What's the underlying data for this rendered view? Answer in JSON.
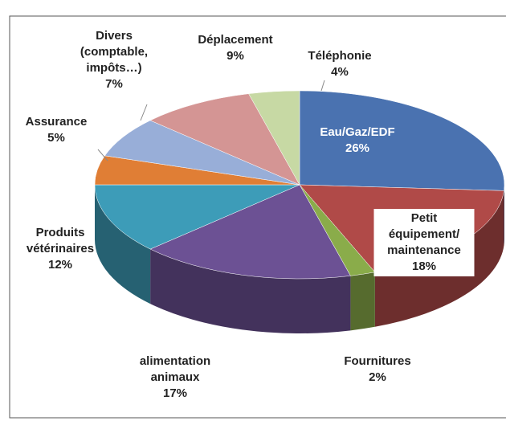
{
  "chart_data": {
    "type": "pie3d",
    "categories": [
      "Eau/Gaz/EDF",
      "Petit équipement/ maintenance",
      "Fournitures",
      "alimentation animaux",
      "Produits vétérinaires",
      "Assurance",
      "Divers (comptable, impôts…)",
      "Déplacement",
      "Téléphonie"
    ],
    "values": [
      26,
      18,
      2,
      17,
      12,
      5,
      7,
      9,
      4
    ],
    "value_labels": [
      "26%",
      "18%",
      "2%",
      "17%",
      "12%",
      "5%",
      "7%",
      "9%",
      "4%"
    ],
    "colors": [
      "#4a72b0",
      "#b04a48",
      "#8aac4a",
      "#6c5194",
      "#3d9cb8",
      "#e07e35",
      "#98aed8",
      "#d49594",
      "#c7d9a4"
    ]
  }
}
